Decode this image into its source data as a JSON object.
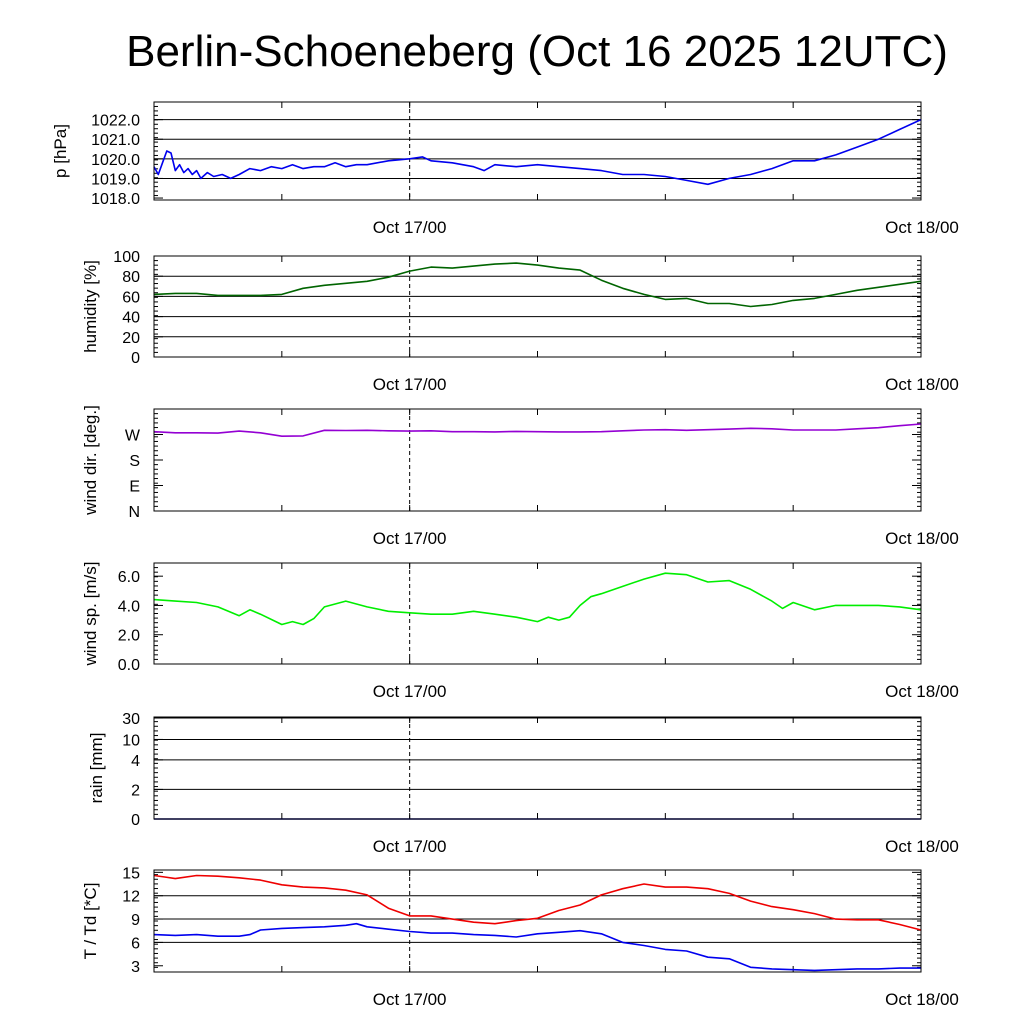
{
  "chart_data": {
    "type": "line",
    "title": "Berlin-Schoeneberg (Oct 16 2025 12UTC)",
    "x_ticks": [
      "Oct 17/00",
      "Oct 18/00"
    ],
    "x_range_hours": [
      0,
      36
    ],
    "marker_hour": 12,
    "panels": [
      {
        "id": "pressure",
        "ylabel": "p [hPa]",
        "yticks": [
          1018.0,
          1019.0,
          1020.0,
          1021.0,
          1022.0
        ],
        "ytick_labels": [
          "1018.0",
          "1019.0",
          "1020.0",
          "1021.0",
          "1022.0"
        ],
        "ylim": [
          1017.9,
          1022.9
        ],
        "grid": [
          1019.0,
          1020.0,
          1021.0,
          1022.0
        ],
        "series": [
          {
            "name": "pressure",
            "color": "#0000ee",
            "x": [
              0,
              0.2,
              0.4,
              0.6,
              0.8,
              1.0,
              1.2,
              1.4,
              1.6,
              1.8,
              2.0,
              2.2,
              2.5,
              2.8,
              3.2,
              3.6,
              4.0,
              4.5,
              5.0,
              5.5,
              6.0,
              6.5,
              7.0,
              7.5,
              8.0,
              8.5,
              9.0,
              9.5,
              10.0,
              11.0,
              12.0,
              12.6,
              13.0,
              14.0,
              15.0,
              15.5,
              16.0,
              17.0,
              18.0,
              19.0,
              20.0,
              21.0,
              22.0,
              23.0,
              24.0,
              25.0,
              26.0,
              27.0,
              28.0,
              29.0,
              30.0,
              31.0,
              32.0,
              33.0,
              34.0,
              35.0,
              36.0
            ],
            "y": [
              1019.6,
              1019.2,
              1019.8,
              1020.4,
              1020.3,
              1019.4,
              1019.7,
              1019.3,
              1019.5,
              1019.2,
              1019.4,
              1019.0,
              1019.3,
              1019.1,
              1019.2,
              1019.0,
              1019.2,
              1019.5,
              1019.4,
              1019.6,
              1019.5,
              1019.7,
              1019.5,
              1019.6,
              1019.6,
              1019.8,
              1019.6,
              1019.7,
              1019.7,
              1019.9,
              1020.0,
              1020.1,
              1019.9,
              1019.8,
              1019.6,
              1019.4,
              1019.7,
              1019.6,
              1019.7,
              1019.6,
              1019.5,
              1019.4,
              1019.2,
              1019.2,
              1019.1,
              1018.9,
              1018.7,
              1019.0,
              1019.2,
              1019.5,
              1019.9,
              1019.9,
              1020.2,
              1020.6,
              1021.0,
              1021.5,
              1022.0
            ]
          }
        ]
      },
      {
        "id": "humidity",
        "ylabel": "humidity [%]",
        "yticks": [
          0,
          20,
          40,
          60,
          80,
          100
        ],
        "ytick_labels": [
          "0",
          "20",
          "40",
          "60",
          "80",
          "100"
        ],
        "ylim": [
          0,
          100
        ],
        "grid": [
          20,
          40,
          60,
          80
        ],
        "series": [
          {
            "name": "humidity",
            "color": "#006400",
            "x": [
              0,
              1,
              2,
              3,
              4,
              5,
              6,
              7,
              8,
              9,
              10,
              11,
              12,
              13,
              14,
              15,
              16,
              17,
              18,
              19,
              20,
              21,
              22,
              23,
              24,
              25,
              26,
              27,
              28,
              29,
              30,
              31,
              32,
              33,
              34,
              35,
              36
            ],
            "y": [
              62,
              63,
              63,
              61,
              61,
              61,
              62,
              68,
              71,
              73,
              75,
              79,
              85,
              89,
              88,
              90,
              92,
              93,
              91,
              88,
              86,
              76,
              68,
              62,
              57,
              58,
              53,
              53,
              50,
              52,
              56,
              58,
              62,
              66,
              69,
              72,
              75
            ]
          }
        ]
      },
      {
        "id": "wind_direction",
        "ylabel": "wind dir. [deg.]",
        "yticks": [
          0,
          90,
          180,
          270
        ],
        "ytick_labels": [
          "N",
          "E",
          "S",
          "W"
        ],
        "ylim": [
          0,
          360
        ],
        "grid": [],
        "series": [
          {
            "name": "wind direction",
            "color": "#9400d3",
            "x": [
              0,
              1,
              2,
              3,
              4,
              5,
              6,
              7,
              8,
              9,
              10,
              11,
              12,
              13,
              14,
              15,
              16,
              17,
              18,
              19,
              20,
              21,
              22,
              23,
              24,
              25,
              26,
              27,
              28,
              29,
              30,
              31,
              32,
              33,
              34,
              35,
              36
            ],
            "y": [
              280,
              276,
              276,
              275,
              282,
              276,
              264,
              265,
              285,
              284,
              285,
              283,
              282,
              283,
              280,
              280,
              279,
              281,
              280,
              279,
              279,
              280,
              283,
              286,
              287,
              285,
              287,
              289,
              292,
              290,
              286,
              286,
              286,
              290,
              294,
              301,
              307
            ]
          }
        ]
      },
      {
        "id": "wind_speed",
        "ylabel": "wind sp. [m/s]",
        "yticks": [
          0.0,
          2.0,
          4.0,
          6.0
        ],
        "ytick_labels": [
          "0.0",
          "2.0",
          "4.0",
          "6.0"
        ],
        "ylim": [
          0,
          6.9
        ],
        "grid": [],
        "series": [
          {
            "name": "wind speed",
            "color": "#00ee00",
            "x": [
              0,
              1,
              2,
              3,
              4,
              4.5,
              5,
              6,
              6.5,
              7,
              7.5,
              8,
              9,
              10,
              11,
              12,
              13,
              14,
              15,
              16,
              17,
              18,
              18.5,
              19,
              19.5,
              20,
              20.5,
              21,
              22,
              23,
              24,
              25,
              26,
              27,
              28,
              29,
              29.5,
              30,
              31,
              32,
              33,
              34,
              35,
              36
            ],
            "y": [
              4.4,
              4.3,
              4.2,
              3.9,
              3.3,
              3.7,
              3.4,
              2.7,
              2.9,
              2.7,
              3.1,
              3.9,
              4.3,
              3.9,
              3.6,
              3.5,
              3.4,
              3.4,
              3.6,
              3.4,
              3.2,
              2.9,
              3.2,
              3.0,
              3.2,
              4.0,
              4.6,
              4.8,
              5.3,
              5.8,
              6.2,
              6.1,
              5.6,
              5.7,
              5.1,
              4.3,
              3.8,
              4.2,
              3.7,
              4.0,
              4.0,
              4.0,
              3.9,
              3.7
            ]
          }
        ]
      },
      {
        "id": "rain",
        "ylabel": "rain [mm]",
        "yticks": [
          0,
          2,
          4,
          10,
          30
        ],
        "ytick_labels": [
          "0",
          "2",
          "4",
          "10",
          "30"
        ],
        "ylim": [
          0,
          30
        ],
        "grid": [
          2,
          4,
          10,
          30
        ],
        "series": [
          {
            "name": "rain",
            "color": "#00008b",
            "x": [
              0,
              36
            ],
            "y": [
              0,
              0
            ]
          }
        ]
      },
      {
        "id": "temperature",
        "ylabel": "T / Td [*C]",
        "yticks": [
          3,
          6,
          9,
          12,
          15
        ],
        "ytick_labels": [
          "3",
          "6",
          "9",
          "12",
          "15"
        ],
        "ylim": [
          2.2,
          15.3
        ],
        "grid": [
          6,
          9,
          12
        ],
        "series": [
          {
            "name": "T",
            "color": "#ee0000",
            "x": [
              0,
              0.5,
              1,
              2,
              3,
              4,
              5,
              6,
              7,
              8,
              9,
              10,
              11,
              12,
              13,
              14,
              15,
              16,
              17,
              18,
              19,
              20,
              21,
              22,
              23,
              24,
              25,
              26,
              27,
              28,
              29,
              30,
              31,
              32,
              33,
              34,
              35,
              36
            ],
            "y": [
              14.6,
              14.4,
              14.2,
              14.6,
              14.5,
              14.3,
              14.0,
              13.4,
              13.1,
              13.0,
              12.7,
              12.1,
              10.4,
              9.4,
              9.4,
              9.0,
              8.6,
              8.4,
              8.8,
              9.1,
              10.1,
              10.8,
              12.1,
              12.9,
              13.5,
              13.1,
              13.1,
              12.9,
              12.3,
              11.3,
              10.6,
              10.2,
              9.7,
              9.0,
              8.9,
              8.9,
              8.3,
              7.6
            ]
          },
          {
            "name": "Td",
            "color": "#0000ee",
            "x": [
              0,
              1,
              2,
              3,
              4,
              4.5,
              5,
              6,
              7,
              8,
              9,
              9.5,
              10,
              11,
              12,
              13,
              14,
              15,
              16,
              17,
              18,
              19,
              20,
              21,
              22,
              23,
              24,
              25,
              26,
              27,
              28,
              29,
              30,
              31,
              32,
              33,
              34,
              35,
              36
            ],
            "y": [
              7.0,
              6.9,
              7.0,
              6.8,
              6.8,
              7.0,
              7.6,
              7.8,
              7.9,
              8.0,
              8.2,
              8.4,
              8.0,
              7.7,
              7.4,
              7.2,
              7.2,
              7.0,
              6.9,
              6.7,
              7.1,
              7.3,
              7.5,
              7.1,
              6.0,
              5.6,
              5.1,
              4.9,
              4.1,
              3.9,
              2.8,
              2.6,
              2.5,
              2.4,
              2.5,
              2.6,
              2.6,
              2.7,
              2.7
            ]
          }
        ]
      }
    ]
  }
}
